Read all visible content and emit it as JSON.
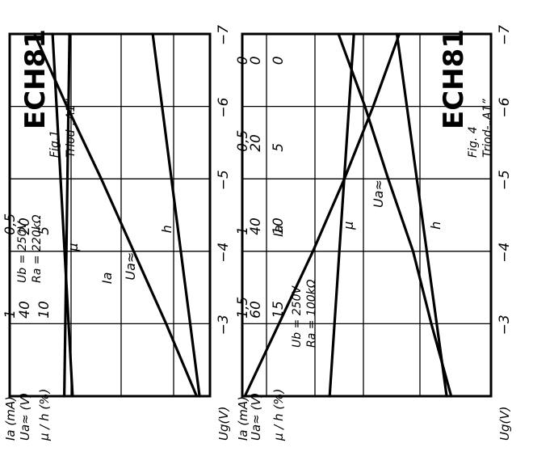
{
  "chart_data": [
    {
      "type": "line",
      "tube": "ECH81",
      "figure": "Fig.1",
      "mode": "Triod-„A1”",
      "conditions": [
        "Ub = 250V",
        "Ra = 220kΩ"
      ],
      "xlabel": "Ug(V)",
      "x_ticks": [
        "−3",
        "−4",
        "−5",
        "−6",
        "−7"
      ],
      "xlim": [
        -2,
        -7
      ],
      "axes": [
        {
          "label": "Ia",
          "unit": "(mA)",
          "ticks": [
            "1",
            "0,5"
          ],
          "range": [
            1.2,
            0.15
          ]
        },
        {
          "label": "Ua≈",
          "unit": "(V)",
          "ticks": [
            "40",
            "20"
          ],
          "range": [
            50,
            15
          ]
        },
        {
          "label": "μ / h",
          "unit": "(%)",
          "ticks": [
            "10",
            "5"
          ],
          "range": [
            11.5,
            3.8
          ]
        }
      ],
      "series": [
        {
          "name": "μ",
          "axis": 2,
          "x": [
            -2,
            -7
          ],
          "y": [
            9.4,
            9.2
          ]
        },
        {
          "name": "Ia",
          "axis": 0,
          "x": [
            -2,
            -3,
            -4,
            -5,
            -6,
            -7
          ],
          "y": [
            0.22,
            0.38,
            0.55,
            0.72,
            0.9,
            1.07
          ]
        },
        {
          "name": "Ua≈",
          "axis": 1,
          "x": [
            -2,
            -7
          ],
          "y": [
            39.0,
            42.5
          ]
        },
        {
          "name": "h",
          "axis": 2,
          "x": [
            -2,
            -7
          ],
          "y": [
            4.2,
            6.0
          ]
        }
      ]
    },
    {
      "type": "line",
      "tube": "ECH81",
      "figure": "Fig. 4",
      "mode": "Triod-„A1”",
      "conditions": [
        "Ub = 250V",
        "Ra = 100kΩ"
      ],
      "xlabel": "Ug(V)",
      "x_ticks": [
        "−3",
        "−4",
        "−5",
        "−6",
        "−7"
      ],
      "xlim": [
        -2,
        -7
      ],
      "axes": [
        {
          "label": "Ia",
          "unit": "(mA)",
          "ticks": [
            "1,5",
            "1",
            "0,5",
            "0"
          ],
          "range": [
            1.9,
            0.0
          ]
        },
        {
          "label": "Ua≈",
          "unit": "(V)",
          "ticks": [
            "60",
            "40",
            "20",
            "0"
          ],
          "range": [
            75,
            0
          ]
        },
        {
          "label": "μ / h",
          "unit": "(%)",
          "ticks": [
            "15",
            "10",
            "5",
            "0"
          ],
          "range": [
            18.5,
            0
          ]
        }
      ],
      "series": [
        {
          "name": "Ia",
          "axis": 0,
          "x": [
            -2,
            -3,
            -4,
            -5,
            -6,
            -7
          ],
          "y": [
            1.88,
            1.62,
            1.36,
            1.12,
            0.9,
            0.7
          ]
        },
        {
          "name": "μ",
          "axis": 2,
          "x": [
            -2,
            -7
          ],
          "y": [
            12.0,
            10.2
          ]
        },
        {
          "name": "Ua≈",
          "axis": 1,
          "x": [
            -2,
            -3,
            -4,
            -5,
            -6,
            -7
          ],
          "y": [
            12,
            18,
            23.5,
            31,
            38,
            46
          ]
        },
        {
          "name": "h",
          "axis": 2,
          "x": [
            -2,
            -7
          ],
          "y": [
            3.3,
            7.0
          ]
        }
      ]
    }
  ]
}
